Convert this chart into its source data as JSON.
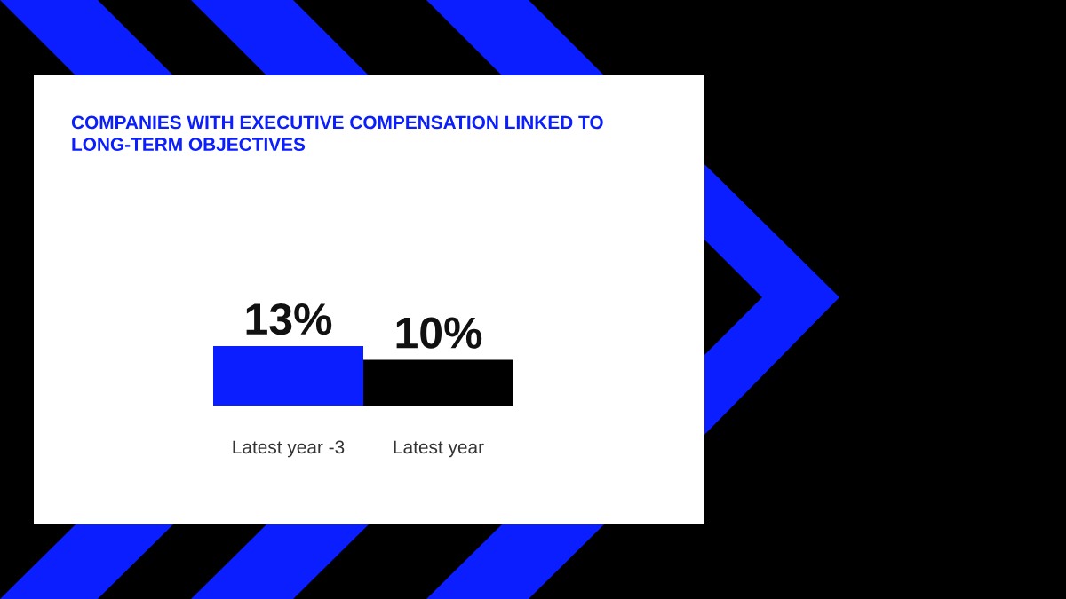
{
  "chart_data": {
    "type": "bar",
    "title": "COMPANIES WITH EXECUTIVE COMPENSATION LINKED TO\nLONG-TERM OBJECTIVES",
    "categories": [
      "Latest year -3",
      "Latest year"
    ],
    "values": [
      13,
      10
    ],
    "colors": [
      "#0a1eff",
      "#000000"
    ],
    "value_labels": [
      "13%",
      "10%"
    ]
  }
}
